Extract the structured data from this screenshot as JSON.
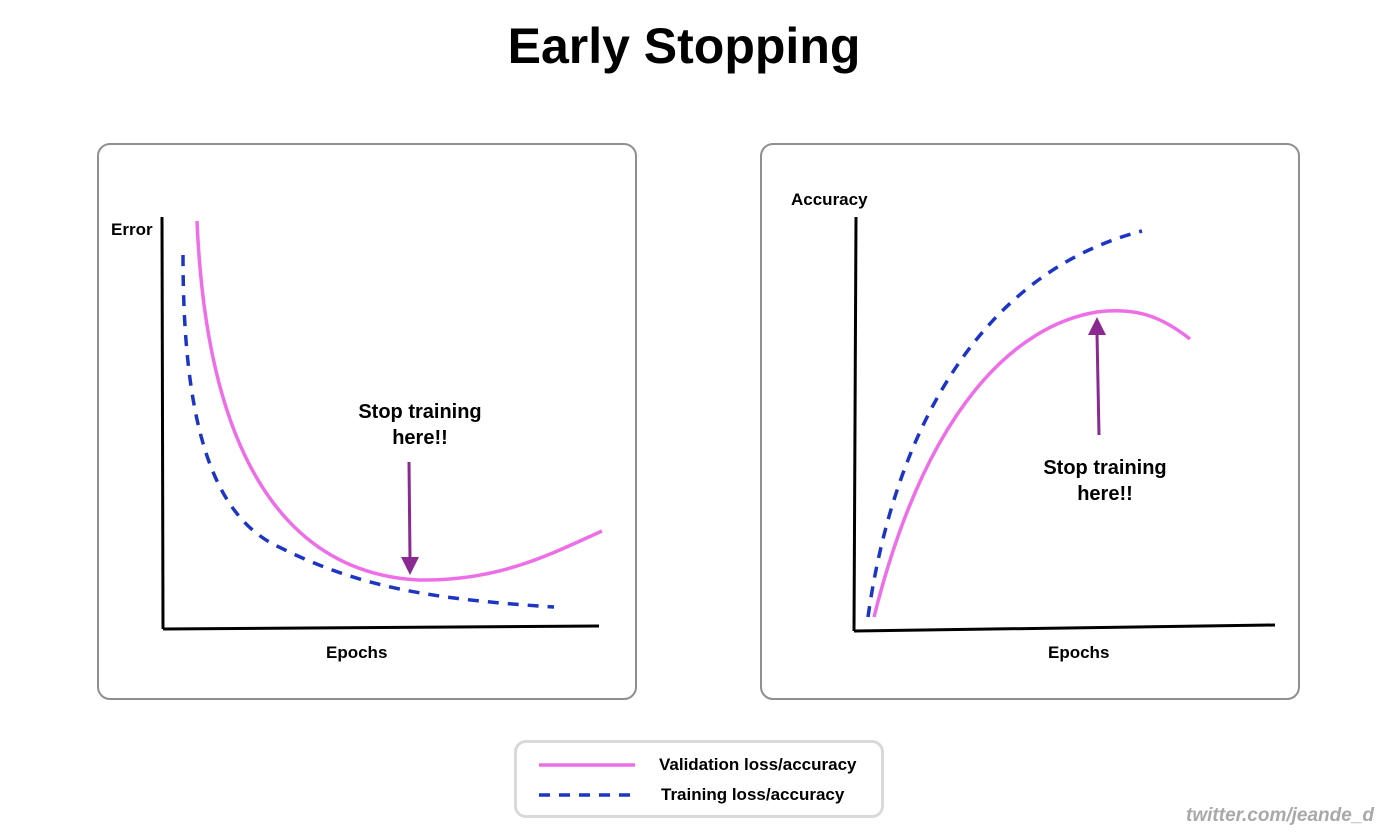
{
  "title": "Early Stopping",
  "colors": {
    "validation": "#ee6ee8",
    "training": "#1d35c4",
    "arrow": "#8a2a91",
    "panel_border": "#8f8f8f",
    "legend_border": "#d9d9d9",
    "credit": "#a9a9a9"
  },
  "error_panel": {
    "y_label": "Error",
    "x_label": "Epochs",
    "annotation_line1": "Stop training",
    "annotation_line2": "here!!",
    "arrow_direction": "down"
  },
  "accuracy_panel": {
    "y_label": "Accuracy",
    "x_label": "Epochs",
    "annotation_line1": "Stop training",
    "annotation_line2": "here!!",
    "arrow_direction": "up"
  },
  "legend": {
    "validation_label": "Validation loss/accuracy",
    "training_label": "Training loss/accuracy",
    "validation_style": "solid",
    "training_style": "dashed"
  },
  "credit": "twitter.com/jeande_d"
}
